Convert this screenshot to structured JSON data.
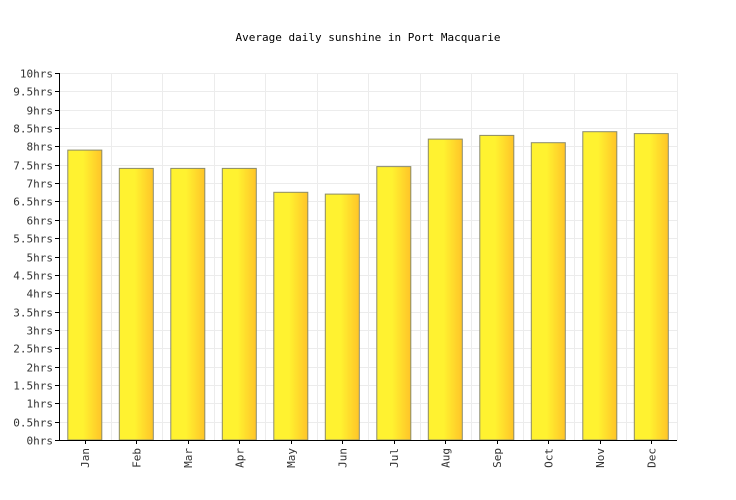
{
  "chart_data": {
    "type": "bar",
    "title": "Average daily sunshine in Port Macquarie",
    "xlabel": "",
    "ylabel": "",
    "categories": [
      "Jan",
      "Feb",
      "Mar",
      "Apr",
      "May",
      "Jun",
      "Jul",
      "Aug",
      "Sep",
      "Oct",
      "Nov",
      "Dec"
    ],
    "values": [
      7.9,
      7.4,
      7.4,
      7.4,
      6.75,
      6.7,
      7.45,
      8.2,
      8.3,
      8.1,
      8.4,
      8.35
    ],
    "ylim": [
      0,
      10
    ],
    "ytick_step": 0.5,
    "ytick_labels": [
      "0hrs",
      "0.5hrs",
      "1hrs",
      "1.5hrs",
      "2hrs",
      "2.5hrs",
      "3hrs",
      "3.5hrs",
      "4hrs",
      "4.5hrs",
      "5hrs",
      "5.5hrs",
      "6hrs",
      "6.5hrs",
      "7hrs",
      "7.5hrs",
      "8hrs",
      "8.5hrs",
      "9hrs",
      "9.5hrs",
      "10hrs"
    ],
    "grid": true,
    "legend": "none",
    "colors": {
      "bar_center": "#fff230",
      "bar_edge": "#ffc428",
      "bar_stroke": "#8a8a6a"
    }
  }
}
